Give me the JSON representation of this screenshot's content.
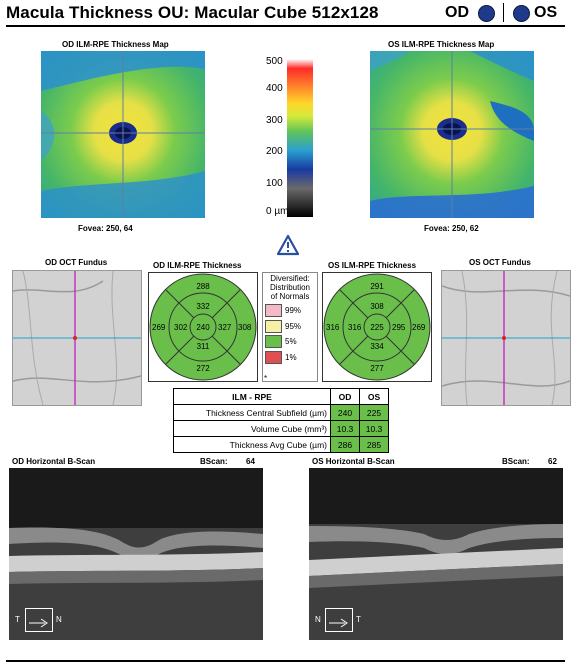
{
  "header": {
    "title": "Macula Thickness OU: Macular Cube 512x128",
    "od_label": "OD",
    "os_label": "OS",
    "eye_dot_color": "#1f3a8a"
  },
  "thickness_maps": {
    "od": {
      "title": "OD ILM-RPE Thickness Map",
      "fovea_label": "Fovea: 250, 64"
    },
    "os": {
      "title": "OS ILM-RPE Thickness Map",
      "fovea_label": "Fovea: 250, 62"
    },
    "scale": {
      "ticks": [
        "500",
        "400",
        "300",
        "200",
        "100",
        "0 µm"
      ]
    }
  },
  "warning_icon": "warning-triangle-icon",
  "fundus": {
    "od": {
      "title": "OD OCT Fundus"
    },
    "os": {
      "title": "OS OCT Fundus"
    }
  },
  "etdrs": {
    "od": {
      "title": "OD ILM-RPE Thickness",
      "center": "240",
      "inner": {
        "top": "332",
        "right": "327",
        "bottom": "311",
        "left": "302"
      },
      "outer": {
        "top": "288",
        "right": "308",
        "bottom": "272",
        "left": "269"
      }
    },
    "os": {
      "title": "OS ILM-RPE Thickness",
      "center": "225",
      "inner": {
        "top": "308",
        "right": "295",
        "bottom": "334",
        "left": "316"
      },
      "outer": {
        "top": "291",
        "right": "269",
        "bottom": "277",
        "left": "316"
      }
    }
  },
  "legend": {
    "title_lines": [
      "Diversified:",
      "Distribution",
      "of Normals"
    ],
    "items": [
      {
        "label": "99%",
        "color": "#f4b8c8"
      },
      {
        "label": "95%",
        "color": "#f6f0a6"
      },
      {
        "label": "5%",
        "color": "#6abf4b"
      },
      {
        "label": "1%",
        "color": "#e05050"
      }
    ],
    "dagger": "*"
  },
  "stats_table": {
    "header": {
      "label": "ILM - RPE",
      "od": "OD",
      "os": "OS"
    },
    "rows": [
      {
        "label": "Thickness Central Subfield (µm)",
        "od": "240",
        "os": "225"
      },
      {
        "label": "Volume Cube (mm³)",
        "od": "10.3",
        "os": "10.3"
      },
      {
        "label": "Thickness Avg Cube (µm)",
        "od": "286",
        "os": "285"
      }
    ],
    "cell_color": "#6abf4b"
  },
  "bscans": {
    "od": {
      "title": "OD Horizontal B-Scan",
      "bscan_label": "BScan:",
      "bscan_value": "64",
      "orient_left": "T",
      "orient_right": "N"
    },
    "os": {
      "title": "OS Horizontal B-Scan",
      "bscan_label": "BScan:",
      "bscan_value": "62",
      "orient_left": "N",
      "orient_right": "T"
    }
  }
}
